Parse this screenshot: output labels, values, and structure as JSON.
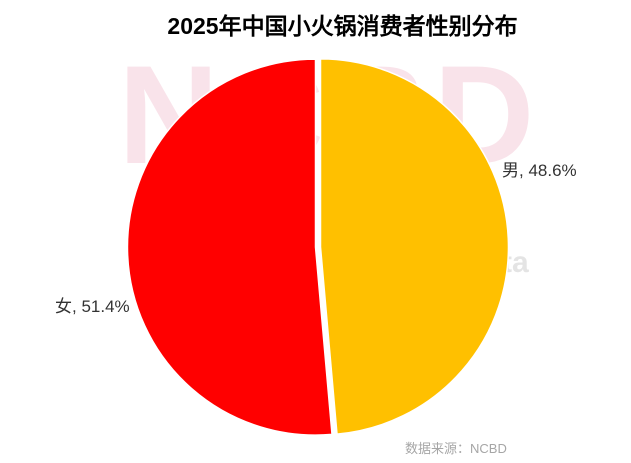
{
  "header": {
    "title": "2025年中国小火锅消费者性别分布"
  },
  "chart_data": {
    "type": "pie",
    "title": "2025年中国小火锅消费者性别分布",
    "categories": [
      "男",
      "女"
    ],
    "values": [
      48.6,
      51.4
    ],
    "unit": "%",
    "series_colors": [
      "#FFC000",
      "#FF0000"
    ],
    "data_labels": [
      "男, 48.6%",
      "女, 51.4%"
    ],
    "start_angle_deg": 0,
    "direction": "clockwise",
    "legend": "none",
    "source_note": "数据来源：NCBD"
  },
  "watermark": {
    "text": "NCBD",
    "fragment": "ta",
    "text_color": "#f9e3ea",
    "fragment_color": "#e4e4e4"
  }
}
